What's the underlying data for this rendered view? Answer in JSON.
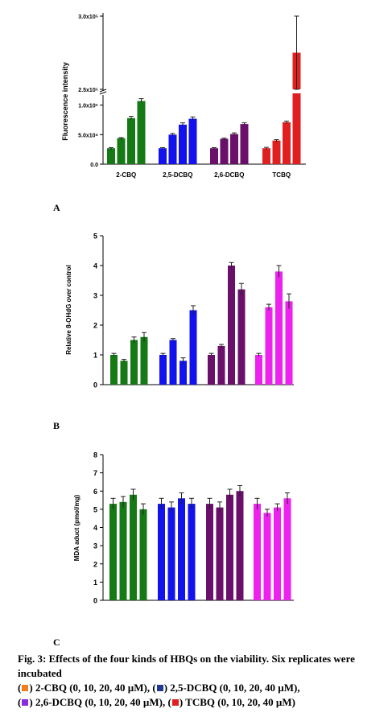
{
  "colors": {
    "2-CBQ": "#157a15",
    "2,5-DCBQ": "#1212ee",
    "2,6-DCBQ": "#6a0f6a",
    "TCBQ": "#e02020",
    "TCBQ_magenta": "#ee22ee",
    "legend_2CBQ": "#f07f1e",
    "legend_25DCBQ": "#1f3a93",
    "legend_26DCBQ": "#8a2be2",
    "legend_TCBQ": "#e02020"
  },
  "panels": {
    "a": "A",
    "b": "B",
    "c": "C"
  },
  "caption": {
    "line1": "Fig. 3: Effects of the four kinds of HBQs on the viability. Six replicates were incubated",
    "legend": [
      {
        "label": "2-CBQ (0, 10, 20, 40 µM),",
        "color": "#f07f1e"
      },
      {
        "label": "2,5-DCBQ (0, 10, 20, 40 µM),",
        "color": "#1f3a93"
      },
      {
        "label": "2,6-DCBQ (0, 10, 20, 40 µM),",
        "color": "#8a2be2"
      },
      {
        "label": "TCBQ (0, 10, 20, 40 µM)",
        "color": "#e02020"
      }
    ]
  },
  "chart_data": [
    {
      "type": "bar",
      "panel": "A",
      "ylabel": "Fluorescence intensity",
      "axis_break": true,
      "ytick_labels": [
        "0.0",
        "5.0x10⁴",
        "1.0x10⁵",
        "2.5x10⁵",
        "3.0x10⁵"
      ],
      "categories": [
        "2-CBQ",
        "2,5-DCBQ",
        "2,6-DCBQ",
        "TCBQ"
      ],
      "series_colors": [
        "#157a15",
        "#1212ee",
        "#6a0f6a",
        "#e02020"
      ],
      "values": [
        [
          27000,
          44000,
          78000,
          107000
        ],
        [
          27000,
          50000,
          67000,
          77000
        ],
        [
          27000,
          43000,
          51000,
          68000
        ],
        [
          27000,
          40000,
          71000,
          275000
        ]
      ],
      "errors": [
        [
          1000,
          1000,
          3000,
          4000
        ],
        [
          1000,
          2000,
          3000,
          3000
        ],
        [
          1000,
          1000,
          2000,
          2000
        ],
        [
          1500,
          1500,
          2000,
          25000
        ]
      ]
    },
    {
      "type": "bar",
      "panel": "B",
      "ylabel": "Relative 8-OHdG over control",
      "ylim": [
        0,
        5
      ],
      "yticks": [
        0,
        1,
        2,
        3,
        4,
        5
      ],
      "series_colors": [
        "#157a15",
        "#1212ee",
        "#6a0f6a",
        "#ee22ee"
      ],
      "values": [
        [
          1.0,
          0.8,
          1.5,
          1.6
        ],
        [
          1.0,
          1.5,
          0.8,
          2.5
        ],
        [
          1.0,
          1.3,
          4.0,
          3.2
        ],
        [
          1.0,
          2.6,
          3.8,
          2.8
        ]
      ],
      "errors": [
        [
          0.05,
          0.05,
          0.1,
          0.15
        ],
        [
          0.05,
          0.05,
          0.1,
          0.15
        ],
        [
          0.05,
          0.05,
          0.1,
          0.2
        ],
        [
          0.05,
          0.1,
          0.2,
          0.25
        ]
      ]
    },
    {
      "type": "bar",
      "panel": "C",
      "ylabel": "MDA aduct (pmol/mg)",
      "ylim": [
        0,
        8
      ],
      "yticks": [
        0,
        1,
        2,
        3,
        4,
        5,
        6,
        7,
        8
      ],
      "series_colors": [
        "#157a15",
        "#1212ee",
        "#6a0f6a",
        "#ee22ee"
      ],
      "values": [
        [
          5.3,
          5.4,
          5.8,
          5.0
        ],
        [
          5.3,
          5.1,
          5.6,
          5.3
        ],
        [
          5.3,
          5.1,
          5.8,
          6.0
        ],
        [
          5.3,
          4.8,
          5.1,
          5.6
        ]
      ],
      "errors": [
        [
          0.3,
          0.3,
          0.3,
          0.3
        ],
        [
          0.3,
          0.3,
          0.3,
          0.3
        ],
        [
          0.3,
          0.3,
          0.3,
          0.3
        ],
        [
          0.3,
          0.2,
          0.2,
          0.3
        ]
      ]
    }
  ]
}
